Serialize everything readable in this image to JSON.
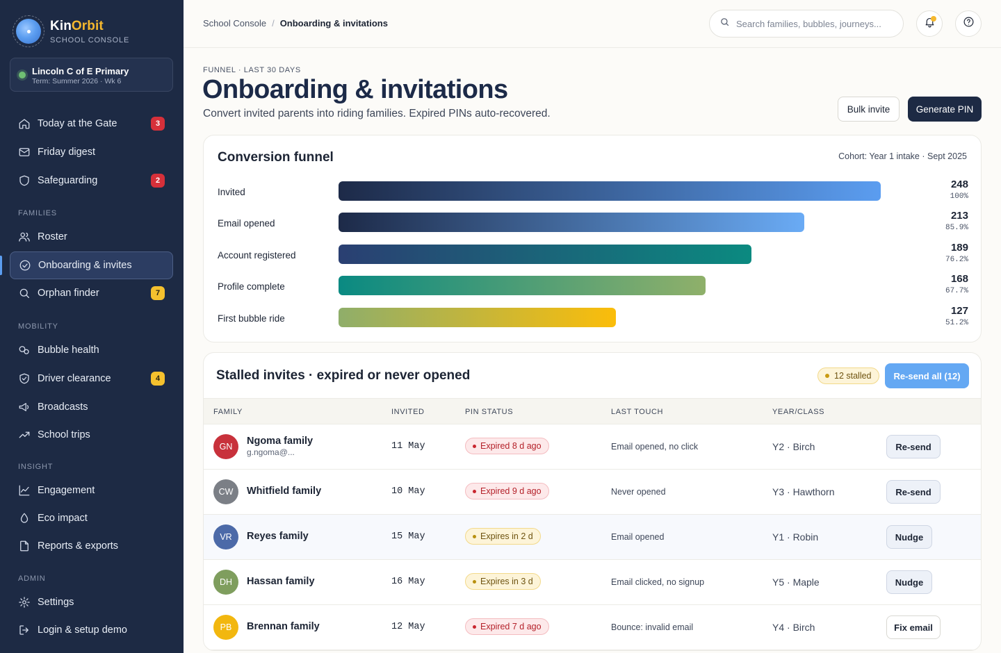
{
  "app": {
    "brand_part1": "Kin",
    "brand_part2": "Orbit",
    "brand_sub": "SCHOOL CONSOLE"
  },
  "school": {
    "name": "Lincoln C of E Primary",
    "term": "Term: Summer 2026 · Wk 6"
  },
  "nav": {
    "top": [
      {
        "label": "Today at the Gate",
        "icon": "home-icon",
        "badge": "3"
      },
      {
        "label": "Friday digest",
        "icon": "mail-icon",
        "badge": ""
      },
      {
        "label": "Safeguarding",
        "icon": "shield-icon",
        "badge": "2"
      }
    ],
    "families_label": "FAMILIES",
    "families": [
      {
        "label": "Roster",
        "icon": "users-icon",
        "badge": ""
      },
      {
        "label": "Onboarding & invites",
        "icon": "check-circle-icon",
        "badge": ""
      },
      {
        "label": "Orphan finder",
        "icon": "search-icon",
        "badge": "7"
      }
    ],
    "mobility_label": "MOBILITY",
    "mobility": [
      {
        "label": "Bubble health",
        "icon": "bubbles-icon",
        "badge": ""
      },
      {
        "label": "Driver clearance",
        "icon": "shield-check-icon",
        "badge": "4"
      },
      {
        "label": "Broadcasts",
        "icon": "megaphone-icon",
        "badge": ""
      },
      {
        "label": "School trips",
        "icon": "trend-icon",
        "badge": ""
      }
    ],
    "insight_label": "INSIGHT",
    "insight": [
      {
        "label": "Engagement",
        "icon": "line-chart-icon",
        "badge": ""
      },
      {
        "label": "Eco impact",
        "icon": "droplet-icon",
        "badge": ""
      },
      {
        "label": "Reports & exports",
        "icon": "file-icon",
        "badge": ""
      }
    ],
    "admin_label": "ADMIN",
    "admin": [
      {
        "label": "Settings",
        "icon": "gear-icon",
        "badge": ""
      },
      {
        "label": "Login & setup demo",
        "icon": "login-icon",
        "badge": ""
      }
    ]
  },
  "topbar": {
    "crumb_root": "School Console",
    "crumb_sep": "/",
    "crumb_current": "Onboarding & invitations",
    "search_placeholder": "Search families, bubbles, journeys..."
  },
  "header": {
    "eyebrow": "FUNNEL · LAST 30 DAYS",
    "title": "Onboarding & invitations",
    "subtitle": "Convert invited parents into riding families. Expired PINs auto-recovered.",
    "bulk_invite": "Bulk invite",
    "generate_pin": "Generate PIN"
  },
  "funnel": {
    "title": "Conversion funnel",
    "cohort": "Cohort: Year 1 intake · Sept 2025",
    "stages": [
      {
        "label": "Invited",
        "count": "248",
        "pct": "100%",
        "fraction": 1.0,
        "color_start": "#1d2a48",
        "color_end": "#5b9df0"
      },
      {
        "label": "Email opened",
        "count": "213",
        "pct": "85.9%",
        "fraction": 0.859,
        "color_start": "#1d2a48",
        "color_end": "#6aabf5"
      },
      {
        "label": "Account registered",
        "count": "189",
        "pct": "76.2%",
        "fraction": 0.762,
        "color_start": "#2a3f72",
        "color_end": "#0b8a80"
      },
      {
        "label": "Profile complete",
        "count": "168",
        "pct": "67.7%",
        "fraction": 0.677,
        "color_start": "#0a8a82",
        "color_end": "#8fb06a"
      },
      {
        "label": "First bubble ride",
        "count": "127",
        "pct": "51.2%",
        "fraction": 0.512,
        "color_start": "#8fae6a",
        "color_end": "#fbbd0a"
      }
    ]
  },
  "stalled": {
    "title": "Stalled invites · expired or never opened",
    "pill": "12 stalled",
    "resend_all": "Re-send all (12)",
    "columns": [
      "FAMILY",
      "INVITED",
      "PIN STATUS",
      "LAST TOUCH",
      "YEAR/CLASS"
    ],
    "rows": [
      {
        "initials": "GN",
        "avatar_color": "#c8313b",
        "name": "Ngoma family",
        "email": "g.ngoma@...",
        "invited": "11 May",
        "pin": "Expired 8 d ago",
        "pin_kind": "expired",
        "touch": "Email opened, no click",
        "yc": "Y2 · Birch",
        "action": "Re-send",
        "action_kind": "resend"
      },
      {
        "initials": "CW",
        "avatar_color": "#7b7f86",
        "name": "Whitfield family",
        "email": "",
        "invited": "10 May",
        "pin": "Expired 9 d ago",
        "pin_kind": "expired",
        "touch": "Never opened",
        "yc": "Y3 · Hawthorn",
        "action": "Re-send",
        "action_kind": "resend"
      },
      {
        "initials": "VR",
        "avatar_color": "#4c6aa8",
        "name": "Reyes family",
        "email": "",
        "invited": "15 May",
        "pin": "Expires in 2 d",
        "pin_kind": "soon",
        "touch": "Email opened",
        "yc": "Y1 · Robin",
        "action": "Nudge",
        "action_kind": "nudge"
      },
      {
        "initials": "DH",
        "avatar_color": "#7f9e5e",
        "name": "Hassan family",
        "email": "",
        "invited": "16 May",
        "pin": "Expires in 3 d",
        "pin_kind": "soon",
        "touch": "Email clicked, no signup",
        "yc": "Y5 · Maple",
        "action": "Nudge",
        "action_kind": "nudge"
      },
      {
        "initials": "PB",
        "avatar_color": "#f2b70f",
        "name": "Brennan family",
        "email": "",
        "invited": "12 May",
        "pin": "Expired 7 d ago",
        "pin_kind": "expired",
        "touch": "Bounce: invalid email",
        "yc": "Y4 · Birch",
        "action": "Fix email",
        "action_kind": "fix"
      }
    ]
  }
}
